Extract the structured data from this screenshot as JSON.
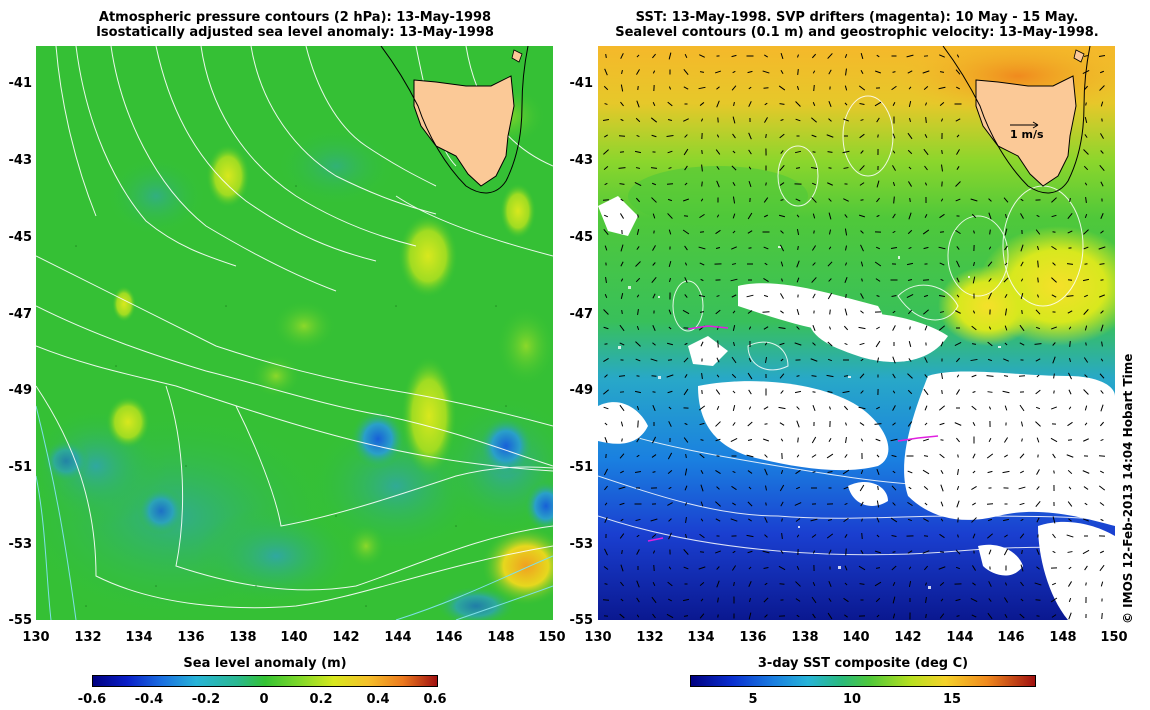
{
  "left_panel": {
    "title_line1": "Atmospheric pressure contours (2 hPa): 13-May-1998",
    "title_line2": "Isostatically adjusted sea level anomaly: 13-May-1998",
    "colorbar_label": "Sea level anomaly (m)",
    "colorbar_ticks": [
      "-0.6",
      "-0.4",
      "-0.2",
      "0",
      "0.2",
      "0.4",
      "0.6"
    ]
  },
  "right_panel": {
    "title_line1": "SST: 13-May-1998. SVP drifters (magenta): 10 May - 15 May.",
    "title_line2": "Sealevel contours (0.1 m) and geostrophic velocity: 13-May-1998.",
    "colorbar_label": "3-day SST composite (deg C)",
    "colorbar_ticks": [
      "5",
      "10",
      "15"
    ],
    "scale_arrow_label": "1 m/s"
  },
  "axes": {
    "lat_ticks": [
      "-41",
      "-43",
      "-45",
      "-47",
      "-49",
      "-51",
      "-53",
      "-55"
    ],
    "lon_ticks": [
      "130",
      "132",
      "134",
      "136",
      "138",
      "140",
      "142",
      "144",
      "146",
      "148",
      "150"
    ]
  },
  "credit": "© IMOS 12-Feb-2013 14:04 Hobart Time",
  "colors": {
    "land": "#fbc997",
    "sla_background": "#33c233",
    "sst_warm": "#f5b82a",
    "sst_mid": "#4fc83a",
    "sst_cold": "#1a3fd0",
    "missing": "#ffffff"
  },
  "map_data": {
    "lon_range": [
      130,
      150
    ],
    "lat_range": [
      -55,
      -40.1
    ],
    "land_label": "Tasmania"
  }
}
